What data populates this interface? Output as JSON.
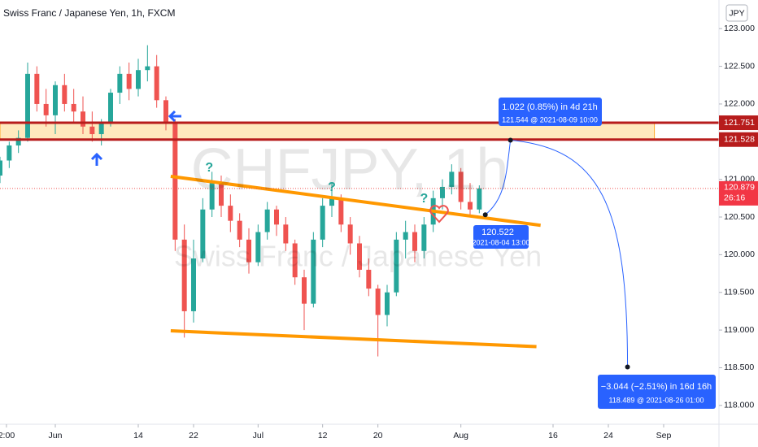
{
  "chart_data": {
    "type": "candlestick",
    "title": "Swiss Franc / Japanese Yen, 1h, FXCM",
    "watermark": "CHFJPY, 1h",
    "watermark_subtitle": "Swiss Franc / Japanese Yen",
    "currency": "JPY",
    "colors": {
      "up": "#26a69a",
      "down": "#ef5350",
      "level": "#b71c1c",
      "trend": "#ff9800",
      "projection": "#2962ff",
      "zone": "#ffe0a3"
    },
    "xlim": [
      -6,
      72
    ],
    "ylim": [
      117.75,
      123.38
    ],
    "xticks": [
      {
        "value": -5.3,
        "label": "2:00"
      },
      {
        "value": 0,
        "label": "Jun"
      },
      {
        "value": 9,
        "label": "14"
      },
      {
        "value": 15,
        "label": "22"
      },
      {
        "value": 22,
        "label": "Jul"
      },
      {
        "value": 29,
        "label": "12"
      },
      {
        "value": 35,
        "label": "20"
      },
      {
        "value": 44,
        "label": "Aug"
      },
      {
        "value": 54,
        "label": "16"
      },
      {
        "value": 60,
        "label": "24"
      },
      {
        "value": 66,
        "label": "Sep"
      }
    ],
    "yticks": [
      {
        "value": 123,
        "label": "123.000"
      },
      {
        "value": 122.5,
        "label": "122.500"
      },
      {
        "value": 122,
        "label": "122.000"
      },
      {
        "value": 121,
        "label": "121.000"
      },
      {
        "value": 120.5,
        "label": "120.500"
      },
      {
        "value": 120,
        "label": "120.000"
      },
      {
        "value": 119.5,
        "label": "119.500"
      },
      {
        "value": 119,
        "label": "119.000"
      },
      {
        "value": 118.5,
        "label": "118.500"
      },
      {
        "value": 118,
        "label": "118.000"
      }
    ],
    "x": [
      -6,
      -5,
      -4,
      -3,
      -2,
      -1,
      0,
      1,
      2,
      3,
      4,
      5,
      6,
      7,
      8,
      9,
      10,
      11,
      12,
      13,
      14,
      15,
      16,
      17,
      18,
      19,
      20,
      21,
      22,
      23,
      24,
      25,
      26,
      27,
      28,
      29,
      30,
      31,
      32,
      33,
      34,
      35,
      36,
      37,
      38,
      39,
      40,
      41,
      42,
      43,
      44,
      45,
      46
    ],
    "open": [
      121.05,
      121.25,
      121.45,
      121.55,
      122.4,
      122.0,
      121.85,
      122.25,
      122.0,
      121.9,
      121.7,
      121.6,
      121.75,
      122.15,
      122.4,
      122.2,
      122.45,
      122.5,
      122.05,
      121.75,
      120.2,
      119.25,
      119.95,
      120.6,
      120.95,
      120.65,
      120.45,
      120.2,
      119.9,
      120.3,
      120.6,
      120.4,
      120.15,
      119.7,
      119.35,
      120.2,
      120.65,
      120.75,
      120.4,
      120.15,
      119.8,
      119.55,
      119.2,
      119.5,
      120.2,
      120.3,
      120.05,
      120.4,
      120.75,
      120.9,
      121.1,
      120.7,
      120.6
    ],
    "high": [
      121.3,
      121.5,
      121.65,
      122.55,
      122.5,
      122.2,
      122.3,
      122.4,
      122.2,
      122.1,
      121.9,
      121.8,
      122.2,
      122.5,
      122.55,
      122.6,
      122.78,
      122.65,
      122.1,
      121.8,
      120.4,
      120.2,
      120.75,
      121.1,
      121.05,
      120.8,
      120.55,
      120.35,
      120.4,
      120.7,
      120.65,
      120.5,
      120.2,
      119.8,
      120.3,
      120.75,
      120.95,
      120.8,
      120.5,
      120.25,
      119.95,
      119.6,
      119.6,
      120.3,
      120.45,
      120.4,
      120.5,
      120.85,
      121.0,
      121.2,
      121.15,
      120.95,
      120.92
    ],
    "low": [
      120.95,
      121.15,
      121.35,
      121.5,
      121.9,
      121.7,
      121.6,
      121.9,
      121.75,
      121.6,
      121.5,
      121.45,
      121.7,
      122.0,
      122.05,
      122.1,
      122.3,
      121.95,
      121.65,
      120.05,
      118.9,
      119.1,
      119.9,
      120.5,
      120.5,
      120.3,
      120.1,
      119.75,
      119.85,
      120.2,
      120.25,
      120.05,
      119.6,
      119.0,
      119.3,
      120.1,
      120.5,
      120.3,
      120.0,
      119.7,
      119.45,
      118.65,
      119.05,
      119.45,
      119.95,
      119.9,
      119.95,
      120.3,
      120.6,
      120.8,
      120.6,
      120.52,
      120.55
    ],
    "close": [
      121.25,
      121.45,
      121.55,
      122.4,
      122.0,
      121.85,
      122.25,
      122.0,
      121.9,
      121.7,
      121.6,
      121.75,
      122.15,
      122.4,
      122.2,
      122.45,
      122.5,
      122.05,
      121.75,
      120.2,
      119.25,
      119.95,
      120.6,
      120.95,
      120.65,
      120.45,
      120.2,
      119.9,
      120.3,
      120.6,
      120.4,
      120.15,
      119.7,
      119.35,
      120.2,
      120.65,
      120.75,
      120.4,
      120.15,
      119.8,
      119.55,
      119.2,
      119.5,
      120.2,
      120.3,
      120.05,
      120.4,
      120.75,
      120.9,
      121.1,
      120.7,
      120.6,
      120.879
    ],
    "price_line": {
      "value": 120.879,
      "label": "120.879"
    },
    "countdown": "26:16",
    "levels": [
      {
        "value": 121.751,
        "label": "121.751"
      },
      {
        "value": 121.528,
        "label": "121.528"
      }
    ],
    "zone": {
      "x": [
        -6,
        65
      ],
      "y": [
        121.528,
        121.751
      ]
    },
    "trendlines": [
      {
        "x": [
          12.52,
          52.65
        ],
        "y": [
          121.04,
          120.39
        ]
      },
      {
        "x": [
          12.52,
          52.2
        ],
        "y": [
          118.99,
          118.78
        ]
      }
    ],
    "question_marks": {
      "text": "?",
      "x": [
        16.7,
        30.0,
        40.0
      ],
      "y": [
        121.15,
        120.89,
        120.74
      ]
    },
    "projection": {
      "x": [
        46.65,
        49.38,
        62.08
      ],
      "y": [
        120.53,
        121.52,
        118.51
      ]
    },
    "annotations": [
      {
        "line1": "1.022 (0.85%) in 4d 21h",
        "line2": "121.544 @ 2021-08-09  10:00"
      },
      {
        "line1": "120.522",
        "line2": "2021-08-04 13:00"
      },
      {
        "line1": "−3.044 (−2.51%) in 16d 16h",
        "line2": "118.489 @ 2021-08-26  01:00"
      }
    ]
  }
}
